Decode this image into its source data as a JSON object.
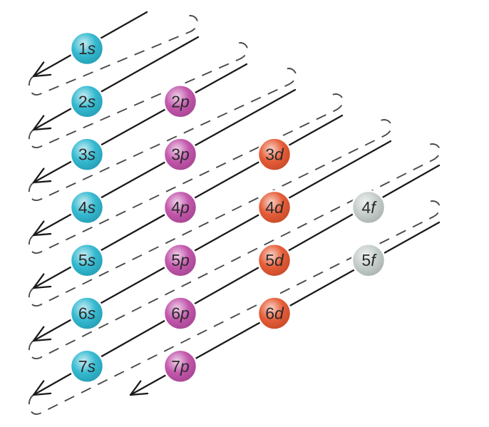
{
  "title": "",
  "orbitals": [
    {
      "label": "1s",
      "n": "1",
      "l": "s",
      "type": "s"
    },
    {
      "label": "2s",
      "n": "2",
      "l": "s",
      "type": "s"
    },
    {
      "label": "2p",
      "n": "2",
      "l": "p",
      "type": "p"
    },
    {
      "label": "3s",
      "n": "3",
      "l": "s",
      "type": "s"
    },
    {
      "label": "3p",
      "n": "3",
      "l": "p",
      "type": "p"
    },
    {
      "label": "3d",
      "n": "3",
      "l": "d",
      "type": "d"
    },
    {
      "label": "4s",
      "n": "4",
      "l": "s",
      "type": "s"
    },
    {
      "label": "4p",
      "n": "4",
      "l": "p",
      "type": "p"
    },
    {
      "label": "4d",
      "n": "4",
      "l": "d",
      "type": "d"
    },
    {
      "label": "4f",
      "n": "4",
      "l": "f",
      "type": "f"
    },
    {
      "label": "5s",
      "n": "5",
      "l": "s",
      "type": "s"
    },
    {
      "label": "5p",
      "n": "5",
      "l": "p",
      "type": "p"
    },
    {
      "label": "5d",
      "n": "5",
      "l": "d",
      "type": "d"
    },
    {
      "label": "5f",
      "n": "5",
      "l": "f",
      "type": "f"
    },
    {
      "label": "6s",
      "n": "6",
      "l": "s",
      "type": "s"
    },
    {
      "label": "6p",
      "n": "6",
      "l": "p",
      "type": "p"
    },
    {
      "label": "6d",
      "n": "6",
      "l": "d",
      "type": "d"
    },
    {
      "label": "7s",
      "n": "7",
      "l": "s",
      "type": "s"
    },
    {
      "label": "7p",
      "n": "7",
      "l": "p",
      "type": "p"
    }
  ],
  "colors": {
    "s": "#2bb6cf",
    "p": "#c04fa9",
    "d": "#e5552f",
    "f": "#c4ccca",
    "line": "#1a1a1a",
    "dash": "#4a4a4a"
  }
}
